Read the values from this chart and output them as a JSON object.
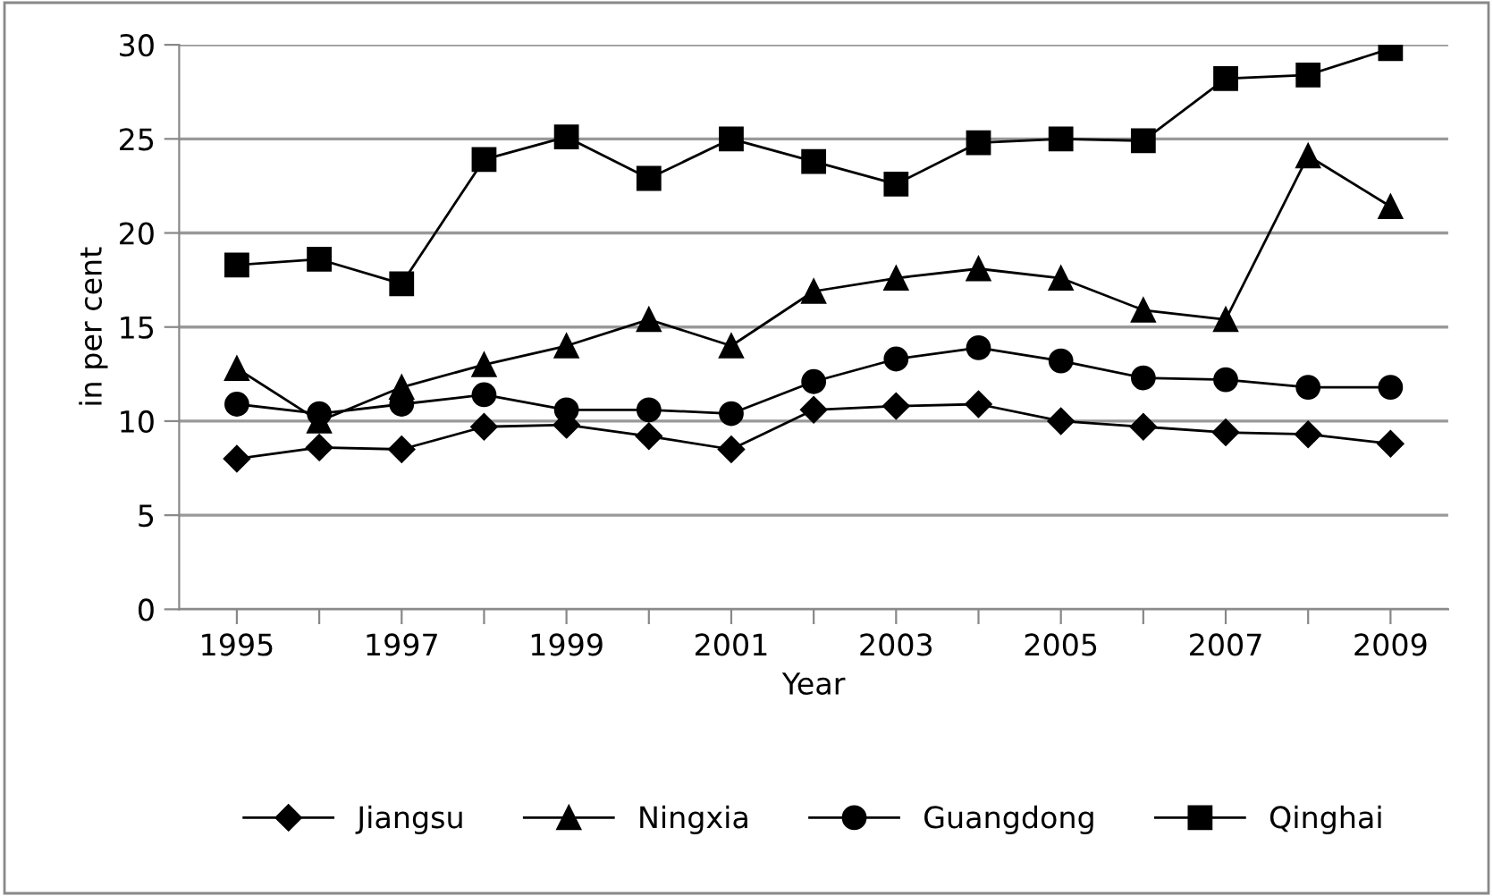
{
  "chart_data": {
    "type": "line",
    "xlabel": "Year",
    "ylabel": "in per cent",
    "categories": [
      "1995",
      null,
      "1997",
      null,
      "1999",
      null,
      "2001",
      null,
      "2003",
      null,
      "2005",
      null,
      "2007",
      null,
      "2009"
    ],
    "series": [
      {
        "name": "Jiangsu",
        "color": "#000000",
        "marker": "diamond",
        "values": [
          8.0,
          8.6,
          8.5,
          9.7,
          9.8,
          9.2,
          8.5,
          10.6,
          10.8,
          10.9,
          10.0,
          9.7,
          9.4,
          9.3,
          8.8
        ]
      },
      {
        "name": "Ningxia",
        "color": "#000000",
        "marker": "triangle",
        "values": [
          12.8,
          10.0,
          11.8,
          13.0,
          14.0,
          15.4,
          14.0,
          16.9,
          17.6,
          18.1,
          17.6,
          15.9,
          15.4,
          24.1,
          21.4
        ]
      },
      {
        "name": "Guangdong",
        "color": "#000000",
        "marker": "circle",
        "values": [
          10.9,
          10.4,
          10.9,
          11.4,
          10.6,
          10.6,
          10.4,
          12.1,
          13.3,
          13.9,
          13.2,
          12.3,
          12.2,
          11.8,
          11.8
        ]
      },
      {
        "name": "Qinghai",
        "color": "#000000",
        "marker": "square",
        "values": [
          18.3,
          18.6,
          17.3,
          23.9,
          25.1,
          22.9,
          25.0,
          23.8,
          22.6,
          24.8,
          25.0,
          24.9,
          28.2,
          28.4,
          29.8
        ]
      }
    ],
    "ylim": [
      0,
      30
    ],
    "yticks": [
      0,
      5,
      10,
      15,
      20,
      25,
      30
    ],
    "grid": "y",
    "legend": "bottom",
    "line_style": "solid"
  }
}
